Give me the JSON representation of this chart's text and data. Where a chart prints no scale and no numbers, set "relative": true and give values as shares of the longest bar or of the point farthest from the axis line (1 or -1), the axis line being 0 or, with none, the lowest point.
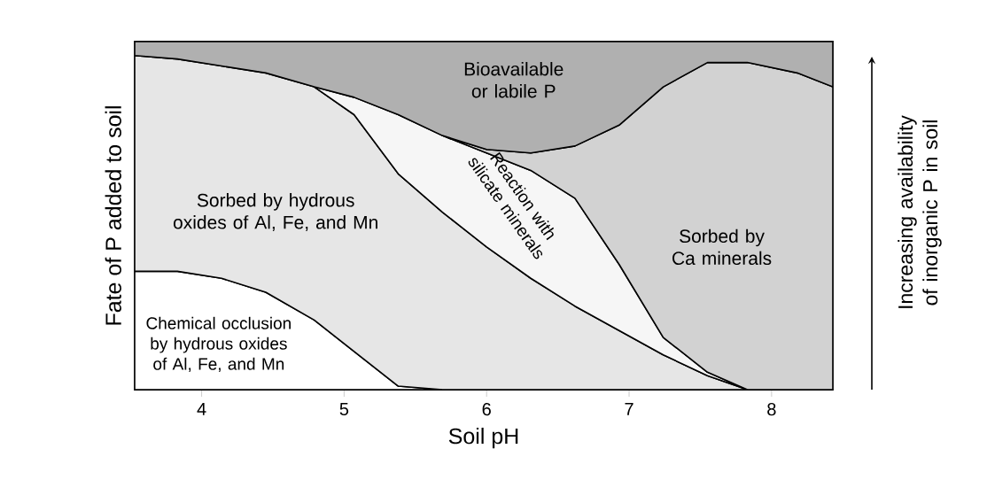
{
  "chart_data": {
    "type": "area",
    "stacked": true,
    "relative": true,
    "xlabel": "Soil pH",
    "ylabel": "Fate of P added to soil",
    "x": [
      3.53,
      3.83,
      4.14,
      4.45,
      4.79,
      5.07,
      5.38,
      5.69,
      6.0,
      6.31,
      6.62,
      6.93,
      7.24,
      7.55,
      7.83,
      8.18,
      8.43
    ],
    "xlim": [
      3.53,
      8.43
    ],
    "xticks": [
      4,
      5,
      6,
      7,
      8
    ],
    "series": [
      {
        "name": "Chemical occlusion by hydrous oxides of Al, Fe, and Mn",
        "color": "#ffffff",
        "values": [
          0.34,
          0.34,
          0.32,
          0.28,
          0.2,
          0.11,
          0.01,
          0,
          null,
          null,
          null,
          null,
          null,
          null,
          null,
          null,
          null
        ]
      },
      {
        "name": "Sorbed by hydrous oxides of Al, Fe, and Mn",
        "color": "#e6e6e6",
        "values": [
          0.62,
          0.61,
          0.61,
          0.63,
          0.67,
          0.68,
          0.61,
          0.51,
          0.41,
          0.32,
          0.24,
          0.17,
          0.1,
          0.04,
          0,
          null,
          null
        ]
      },
      {
        "name": "Reaction with silicate minerals",
        "color": "#f6f6f6",
        "values": [
          null,
          null,
          null,
          null,
          0,
          0.05,
          0.17,
          0.22,
          0.27,
          0.31,
          0.31,
          0.19,
          0.05,
          0.01,
          0,
          null,
          null
        ]
      },
      {
        "name": "Sorbed by Ca minerals",
        "color": "#d2d2d2",
        "values": [
          null,
          null,
          null,
          null,
          null,
          null,
          null,
          0,
          0.01,
          0.05,
          0.15,
          0.4,
          0.72,
          0.89,
          0.94,
          0.91,
          0.87
        ]
      },
      {
        "name": "Bioavailable or labile P",
        "color": "#b0b0b0",
        "values": [
          0.04,
          0.05,
          0.07,
          0.09,
          0.13,
          0.16,
          0.21,
          0.27,
          0.31,
          0.32,
          0.3,
          0.24,
          0.13,
          0.06,
          0.06,
          0.09,
          0.13
        ]
      }
    ],
    "annotations": [
      "Increasing availability of inorganic P in soil"
    ]
  }
}
